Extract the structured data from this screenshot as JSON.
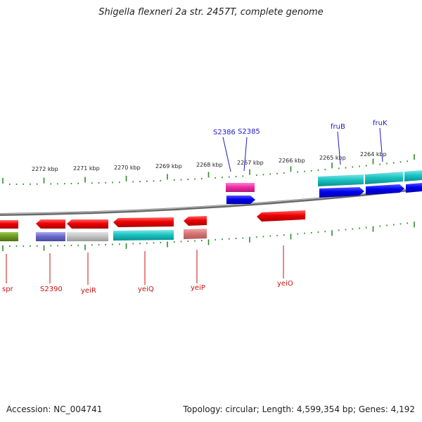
{
  "title": "Shigella flexneri 2a str. 2457T, complete genome",
  "accession": "Accession: NC_004741",
  "summary": "Topology: circular; Length: 4,599,354 bp; Genes: 4,192",
  "scale_labels": [
    "2272 kbp",
    "2271 kbp",
    "2270 kbp",
    "2269 kbp",
    "2268 kbp",
    "2267 kbp",
    "2266 kbp",
    "2265 kbp",
    "2264 kbp"
  ],
  "top_gene_labels": [
    "S2386",
    "S2385",
    "fruB",
    "fruK"
  ],
  "bottom_gene_labels": [
    "spr",
    "S2390",
    "yeiR",
    "yeiQ",
    "yeiP",
    "yeiO"
  ],
  "colors": {
    "forward_label": "#1a1acc",
    "reverse_label": "#cc1111",
    "tick": "#2a8a2a",
    "backbone": "#8a8a8a"
  }
}
